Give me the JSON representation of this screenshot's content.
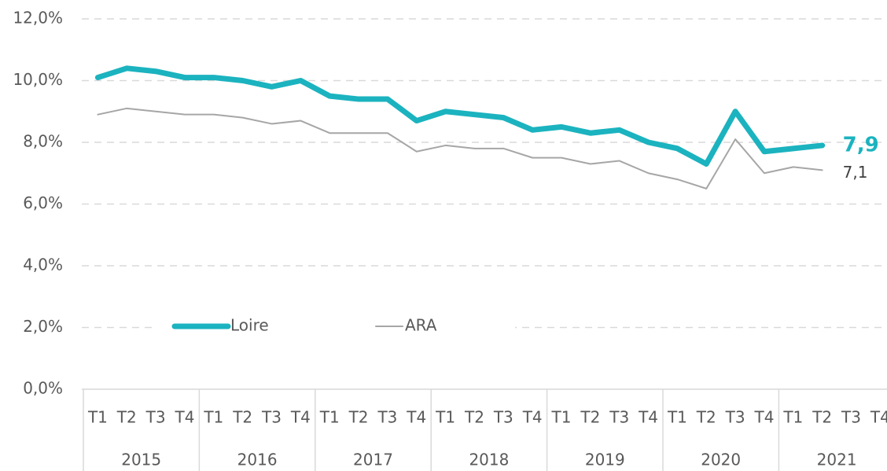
{
  "chart_data": {
    "type": "line",
    "categories": [
      "T1",
      "T2",
      "T3",
      "T4",
      "T1",
      "T2",
      "T3",
      "T4",
      "T1",
      "T2",
      "T3",
      "T4",
      "T1",
      "T2",
      "T3",
      "T4",
      "T1",
      "T2",
      "T3",
      "T4",
      "T1",
      "T2",
      "T3",
      "T4",
      "T1",
      "T2",
      "T3",
      "T4"
    ],
    "category_groups": [
      "2015",
      "2016",
      "2017",
      "2018",
      "2019",
      "2020",
      "2021"
    ],
    "series": [
      {
        "name": "Loire",
        "color": "#1bb3bf",
        "values": [
          10.1,
          10.4,
          10.3,
          10.1,
          10.1,
          10.0,
          9.8,
          10.0,
          9.5,
          9.4,
          9.4,
          8.7,
          9.0,
          8.9,
          8.8,
          8.4,
          8.5,
          8.3,
          8.4,
          8.0,
          7.8,
          7.3,
          9.0,
          7.7,
          7.8,
          7.9,
          null,
          null
        ],
        "value_labels": [
          null,
          null,
          null,
          null,
          null,
          null,
          null,
          null,
          null,
          null,
          null,
          null,
          null,
          null,
          null,
          null,
          null,
          null,
          null,
          null,
          null,
          null,
          null,
          null,
          null,
          "7,9",
          null,
          null
        ]
      },
      {
        "name": "ARA",
        "color": "#a6a6a6",
        "values": [
          8.9,
          9.1,
          9.0,
          8.9,
          8.9,
          8.8,
          8.6,
          8.7,
          8.3,
          8.3,
          8.3,
          7.7,
          7.9,
          7.8,
          7.8,
          7.5,
          7.5,
          7.3,
          7.4,
          7.0,
          6.8,
          6.5,
          8.1,
          7.0,
          7.2,
          7.1,
          null,
          null
        ],
        "value_labels": [
          null,
          null,
          null,
          null,
          null,
          null,
          null,
          null,
          null,
          null,
          null,
          null,
          null,
          null,
          null,
          null,
          null,
          null,
          null,
          null,
          null,
          null,
          null,
          null,
          null,
          "7,1",
          null,
          null
        ]
      }
    ],
    "ylim": [
      0,
      12
    ],
    "yticks": [
      {
        "value": 0,
        "label": "0,0%"
      },
      {
        "value": 2,
        "label": "2,0%"
      },
      {
        "value": 4,
        "label": "4,0%"
      },
      {
        "value": 6,
        "label": "6,0%"
      },
      {
        "value": 8,
        "label": "8,0%"
      },
      {
        "value": 10,
        "label": "10,0%"
      },
      {
        "value": 12,
        "label": "12,0%"
      }
    ],
    "grid": true
  }
}
